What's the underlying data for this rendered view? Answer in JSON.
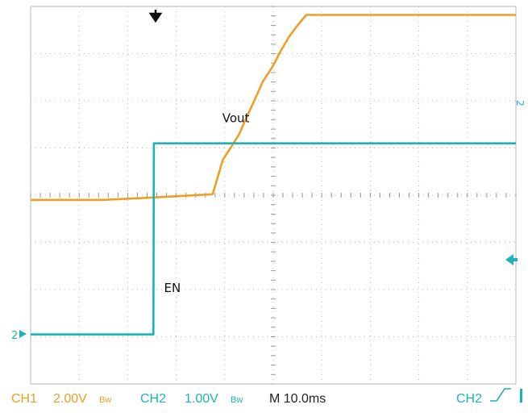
{
  "chart_data": {
    "type": "line",
    "title": "",
    "xlabel": "",
    "ylabel": "",
    "grid": true,
    "xlim": [
      0,
      100
    ],
    "ylim": [
      -4,
      4
    ],
    "x_unit": "ms",
    "annotations": [
      {
        "text": "Vout",
        "x": 39.5,
        "y": 1.55
      },
      {
        "text": "EN",
        "x": 27.5,
        "y": -2.05
      }
    ],
    "series": [
      {
        "name": "CH1",
        "color": "#ec9f25",
        "x": [
          0,
          15,
          25,
          37.5,
          38.6,
          39.6,
          41.2,
          43.0,
          44.5,
          46.3,
          47.8,
          50.0,
          51.5,
          53.2,
          55.0,
          56.8,
          100
        ],
        "y": [
          -0.1,
          -0.1,
          -0.05,
          0.02,
          0.4,
          0.75,
          1.0,
          1.3,
          1.65,
          2.05,
          2.4,
          2.75,
          3.05,
          3.35,
          3.6,
          3.82,
          3.82
        ]
      },
      {
        "name": "CH2",
        "color": "#1ab4b8",
        "x": [
          0,
          25.3,
          25.4,
          100
        ],
        "y": [
          -2.95,
          -2.95,
          1.1,
          1.1
        ]
      }
    ]
  },
  "markers": {
    "trigger_arrow": "down-arrow-icon",
    "ch2_ground_label": "2",
    "right_side_label": "2"
  },
  "status_bar": {
    "ch1": "CH1",
    "ch1_scale": "2.00V",
    "ch1_bw": "Bw",
    "ch2": "CH2",
    "ch2_scale": "1.00V",
    "ch2_bw": "Bw",
    "timebase": "M 10.0ms",
    "trigger_channel": "CH2",
    "trigger_slope": "rising-edge-icon"
  }
}
